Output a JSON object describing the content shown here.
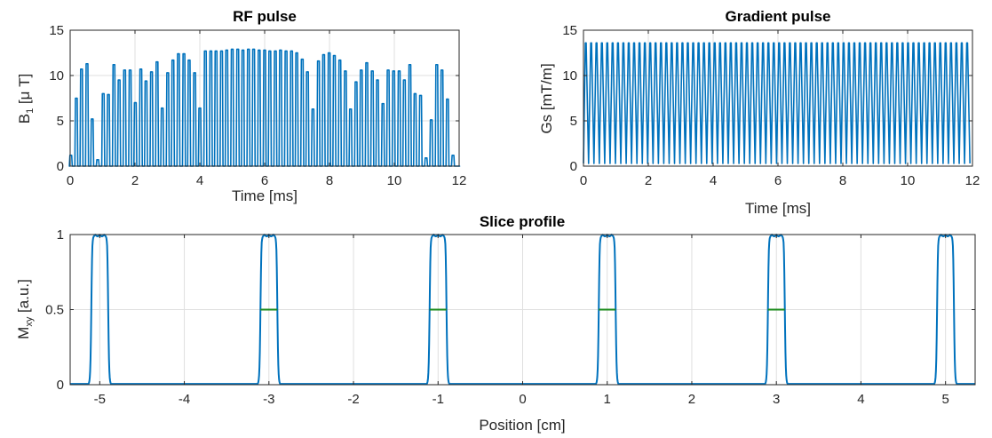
{
  "colors": {
    "series": "#0072bd",
    "fwhm": "#1a8a1a",
    "grid": "#dfdfdf",
    "axis": "#262626"
  },
  "chart_data": [
    {
      "id": "rf",
      "type": "line",
      "title": "RF pulse",
      "xlabel": "Time [ms]",
      "ylabel_main": "B",
      "ylabel_sub": "1",
      "ylabel_rest": " [μ T]",
      "xlim": [
        0,
        12
      ],
      "ylim": [
        0,
        15
      ],
      "xticks": [
        0,
        2,
        4,
        6,
        8,
        10,
        12
      ],
      "xtick_labels": [
        "0",
        "2",
        "4",
        "6",
        "8",
        "10",
        "12"
      ],
      "yticks": [
        0,
        5,
        10,
        15
      ],
      "ytick_labels": [
        "0",
        "5",
        "10",
        "15"
      ],
      "grid": true,
      "series": [
        {
          "name": "B1",
          "pulse_times": [
            0.02,
            0.19,
            0.35,
            0.52,
            0.68,
            0.85,
            1.02,
            1.18,
            1.35,
            1.51,
            1.68,
            1.85,
            2.01,
            2.18,
            2.34,
            2.51,
            2.68,
            2.84,
            3.01,
            3.17,
            3.34,
            3.51,
            3.67,
            3.84,
            4.0,
            4.17,
            4.34,
            4.5,
            4.67,
            4.83,
            5.0,
            5.17,
            5.33,
            5.5,
            5.66,
            5.83,
            6.0,
            6.16,
            6.33,
            6.49,
            6.66,
            6.83,
            6.99,
            7.16,
            7.32,
            7.49,
            7.66,
            7.82,
            7.99,
            8.15,
            8.32,
            8.49,
            8.65,
            8.82,
            8.98,
            9.15,
            9.32,
            9.48,
            9.65,
            9.81,
            9.98,
            10.15,
            10.31,
            10.48,
            10.64,
            10.81,
            10.98,
            11.14,
            11.31,
            11.47,
            11.64,
            11.81,
            11.97
          ],
          "pulse_peaks": [
            1.2,
            7.5,
            10.7,
            11.3,
            5.2,
            0.7,
            8.0,
            7.9,
            11.2,
            9.5,
            10.6,
            10.6,
            7.0,
            10.7,
            9.4,
            10.4,
            11.5,
            6.4,
            10.3,
            11.7,
            12.4,
            12.4,
            11.7,
            10.3,
            6.4,
            12.7,
            12.7,
            12.7,
            12.7,
            12.8,
            12.9,
            12.9,
            12.8,
            12.9,
            12.9,
            12.8,
            12.8,
            12.7,
            12.7,
            12.8,
            12.7,
            12.7,
            12.5,
            11.8,
            10.4,
            6.3,
            11.6,
            12.3,
            12.5,
            12.2,
            11.7,
            10.5,
            6.3,
            9.3,
            10.6,
            11.4,
            10.5,
            9.5,
            6.9,
            10.6,
            10.5,
            10.5,
            9.5,
            11.2,
            8.0,
            7.8,
            0.9,
            5.1,
            11.2,
            10.6,
            7.4,
            1.2,
            0.0
          ]
        }
      ]
    },
    {
      "id": "grad",
      "type": "line",
      "title": "Gradient pulse",
      "xlabel": "Time [ms]",
      "ylabel": "Gs [mT/m]",
      "xlim": [
        0,
        12
      ],
      "ylim": [
        0,
        15
      ],
      "xticks": [
        0,
        2,
        4,
        6,
        8,
        10,
        12
      ],
      "xtick_labels": [
        "0",
        "2",
        "4",
        "6",
        "8",
        "10",
        "12"
      ],
      "yticks": [
        0,
        5,
        10,
        15
      ],
      "ytick_labels": [
        "0",
        "5",
        "10",
        "15"
      ],
      "grid": true,
      "series": [
        {
          "name": "Gs",
          "amplitude": 13.6,
          "period_ms": 0.1657,
          "pulses": 72
        }
      ]
    },
    {
      "id": "slice",
      "type": "line",
      "title": "Slice profile",
      "xlabel": "Position [cm]",
      "ylabel_main": "M",
      "ylabel_sub": "xy",
      "ylabel_rest": " [a.u.]",
      "xlim": [
        -5.35,
        5.35
      ],
      "ylim": [
        0,
        1
      ],
      "xticks": [
        -5,
        -4,
        -3,
        -2,
        -1,
        0,
        1,
        2,
        3,
        4,
        5
      ],
      "xtick_labels": [
        "-5",
        "-4",
        "-3",
        "-2",
        "-1",
        "0",
        "1",
        "2",
        "3",
        "4",
        "5"
      ],
      "yticks": [
        0,
        0.5,
        1
      ],
      "ytick_labels": [
        "0",
        "0.5",
        "1"
      ],
      "grid": true,
      "series": [
        {
          "name": "Mxy",
          "band_centers": [
            -5.0,
            -3.0,
            -1.0,
            1.0,
            3.0,
            5.0
          ],
          "band_width_cm": 0.2,
          "peak": 1.0
        }
      ],
      "fwhm_markers": [
        {
          "x": [
            -3.1,
            -2.9
          ],
          "y": 0.5
        },
        {
          "x": [
            -1.1,
            -0.9
          ],
          "y": 0.5
        },
        {
          "x": [
            0.9,
            1.1
          ],
          "y": 0.5
        },
        {
          "x": [
            2.9,
            3.1
          ],
          "y": 0.5
        }
      ]
    }
  ]
}
